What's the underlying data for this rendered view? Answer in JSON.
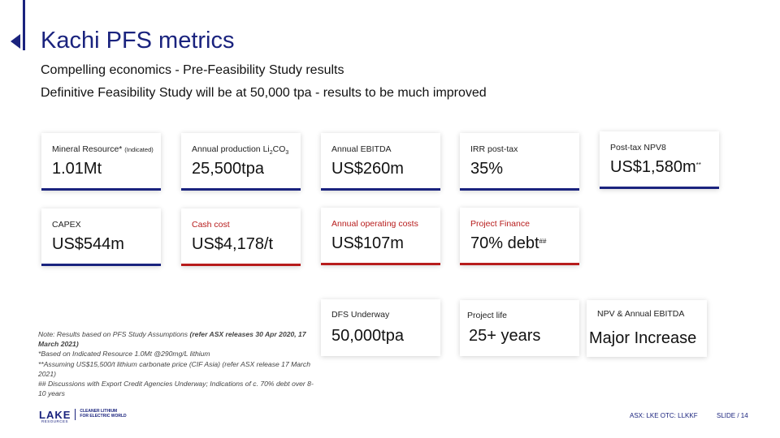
{
  "slide": {
    "title": "Kachi PFS metrics",
    "subtitle_1": "Compelling economics - Pre-Feasibility Study results",
    "subtitle_2": "Definitive Feasibility Study will be at 50,000 tpa - results to be much improved"
  },
  "cards": {
    "mineral_resource": {
      "label": "Mineral Resource*",
      "label_note": "(Indicated)",
      "value": "1.01Mt"
    },
    "annual_production": {
      "label_pre": "Annual production Li",
      "sub_1": "2",
      "label_mid": "CO",
      "sub_2": "3",
      "value": "25,500tpa"
    },
    "annual_ebitda": {
      "label": "Annual EBITDA",
      "value": "US$260m"
    },
    "irr": {
      "label": "IRR post-tax",
      "value": "35%"
    },
    "npv": {
      "label": "Post-tax NPV8",
      "value": "US$1,580m",
      "marker": "**"
    },
    "capex": {
      "label": "CAPEX",
      "value": "US$544m"
    },
    "cash_cost": {
      "label": "Cash cost",
      "value": "US$4,178/t"
    },
    "opex": {
      "label": "Annual operating costs",
      "value": "US$107m"
    },
    "project_finance": {
      "label": "Project Finance",
      "value": "70% debt",
      "marker": "##"
    },
    "dfs": {
      "label": "DFS Underway",
      "value": "50,000tpa"
    },
    "project_life": {
      "label": "Project life",
      "value": "25+ years"
    },
    "npv_ebitda": {
      "label": "NPV & Annual EBITDA",
      "value": "Major Increase"
    }
  },
  "notes": {
    "line_1a": "Note: Results based on PFS Study Assumptions",
    "line_1b": "(refer ASX releases 30 Apr 2020, 17 March 2021)",
    "line_2": "*Based on Indicated Resource 1.0Mt @290mg/L lithium",
    "line_3": "**Assuming US$15,500/t lithium carbonate price (CIF Asia) (refer ASX release 17 March 2021)",
    "line_4": "##  Discussions with Export Credit Agencies Underway; Indications of c. 70% debt over 8-10 years"
  },
  "logo": {
    "word": "LAKE",
    "sub": "RESOURCES",
    "tag_1": "CLEANER LITHIUM",
    "tag_2": "FOR ELECTRIC WORLD"
  },
  "footer": {
    "tickers": "ASX: LKE   OTC: LLKKF",
    "slide_number": "SLIDE / 14"
  },
  "colors": {
    "navy": "#1a237e",
    "red": "#b71c1c"
  }
}
